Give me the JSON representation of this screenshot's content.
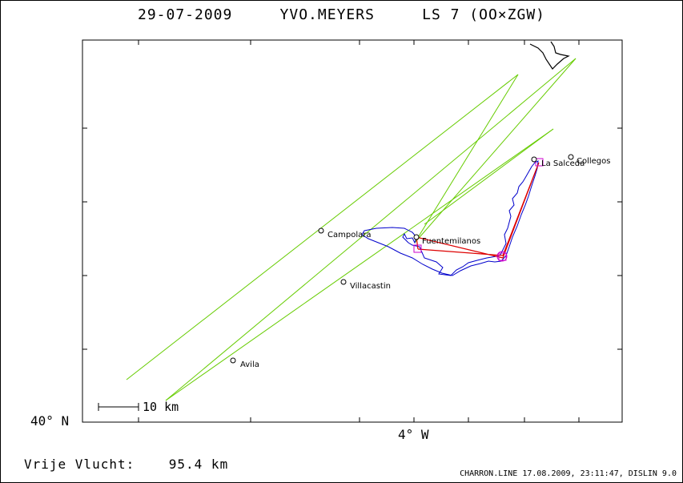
{
  "header": {
    "date": "29-07-2009",
    "pilot": "YVO.MEYERS",
    "glider": "LS 7 (OO×ZGW)"
  },
  "axes": {
    "lat_label": "40° N",
    "lon_label": "4° W"
  },
  "scale_bar": {
    "label": "10 km"
  },
  "towns": [
    {
      "name": "Campolara"
    },
    {
      "name": "Villacastin"
    },
    {
      "name": "Avila"
    },
    {
      "name": "Fuentemilanos"
    },
    {
      "name": "La Salceda"
    },
    {
      "name": "Collegos"
    }
  ],
  "footer": {
    "flight_label": "Vrije Vlucht:",
    "distance": "95.4 km",
    "software": "CHARRON.LINE 17.08.2009, 23:11:47, DISLIN 9.0"
  },
  "colors": {
    "airspace": "#66cc00",
    "track": "#0000cc",
    "route": "#dd0000",
    "turnpoint": "#cc00cc",
    "frame": "#000000"
  }
}
